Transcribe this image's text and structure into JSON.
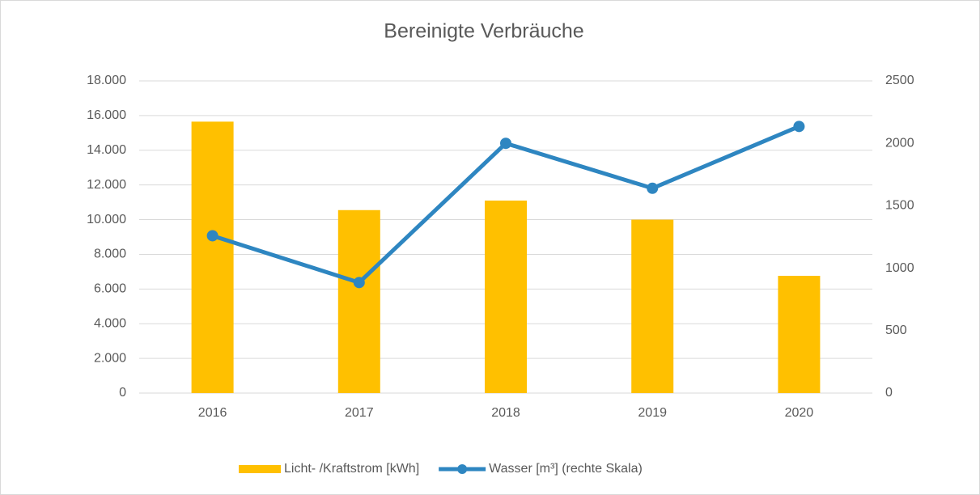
{
  "chart_data": {
    "type": "bar-line",
    "title": "Bereinigte Verbräuche",
    "categories": [
      "2016",
      "2017",
      "2018",
      "2019",
      "2020"
    ],
    "series": [
      {
        "name": "Licht- /Kraftstrom [kWh]",
        "type": "bar",
        "color": "#ffc000",
        "values": [
          15650,
          10550,
          11100,
          10000,
          6760
        ]
      },
      {
        "name": "Wasser [m³] (rechte Skala)",
        "type": "line",
        "axis": "y2",
        "color": "#2e86c1",
        "values": [
          1260,
          885,
          2000,
          1640,
          2135
        ]
      }
    ],
    "ylim": [
      0,
      18000
    ],
    "yticks": [
      0,
      {
        "value": 2000,
        "label": "2.000"
      },
      {
        "value": 4000,
        "label": "4.000"
      },
      {
        "value": 6000,
        "label": "6.000"
      },
      {
        "value": 8000,
        "label": "8.000"
      },
      {
        "value": 10000,
        "label": "10.000"
      },
      {
        "value": 12000,
        "label": "12.000"
      },
      {
        "value": 14000,
        "label": "14.000"
      },
      {
        "value": 16000,
        "label": "16.000"
      },
      {
        "value": 18000,
        "label": "18.000"
      }
    ],
    "y2lim": [
      0,
      2500
    ],
    "y2ticks": [
      0,
      500,
      1000,
      1500,
      2000,
      2500
    ],
    "grid": true,
    "legend": "bottom"
  }
}
